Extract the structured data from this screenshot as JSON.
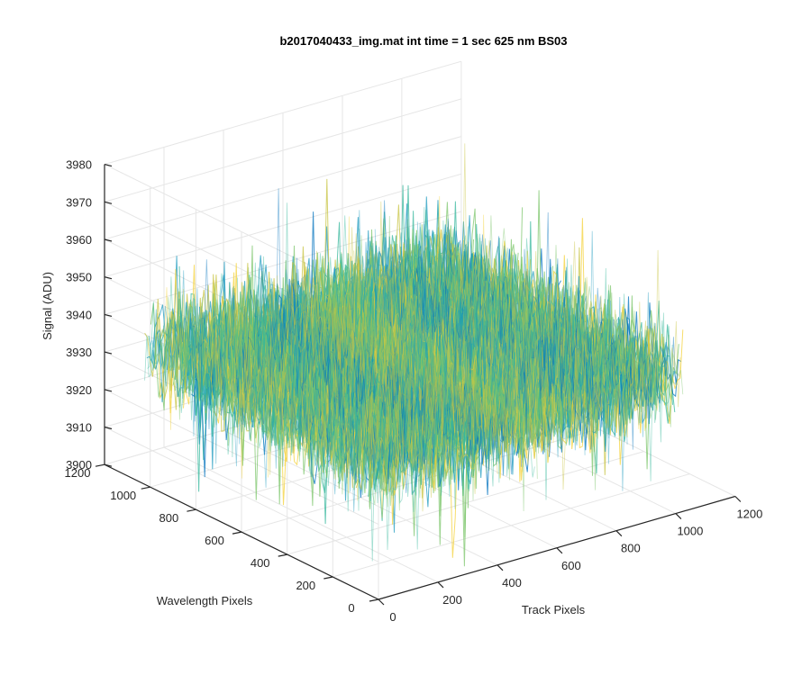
{
  "chart_data": {
    "type": "surface",
    "title": "b2017040433_img.mat int time = 1 sec  625 nm BS03",
    "xlabel": "Track Pixels",
    "ylabel": "Wavelength Pixels",
    "zlabel": "Signal (ADU)",
    "xlim": [
      0,
      1200
    ],
    "ylim": [
      0,
      1200
    ],
    "zlim": [
      3900,
      3980
    ],
    "x_ticks": [
      "0",
      "200",
      "400",
      "600",
      "800",
      "1000",
      "1200"
    ],
    "y_ticks": [
      "0",
      "200",
      "400",
      "600",
      "800",
      "1000",
      "1200"
    ],
    "z_ticks": [
      "3900",
      "3910",
      "3920",
      "3930",
      "3940",
      "3950",
      "3960",
      "3970",
      "3980"
    ],
    "data_extent": {
      "x": [
        0,
        1024
      ],
      "y": [
        0,
        1024
      ]
    },
    "mean_signal": 3936,
    "noise_range": [
      3905,
      3965
    ],
    "grid": true,
    "colormap": [
      "#0072bd",
      "#1f9bbf",
      "#35b79c",
      "#7cc56b",
      "#c7c33f",
      "#f4d23a"
    ]
  }
}
